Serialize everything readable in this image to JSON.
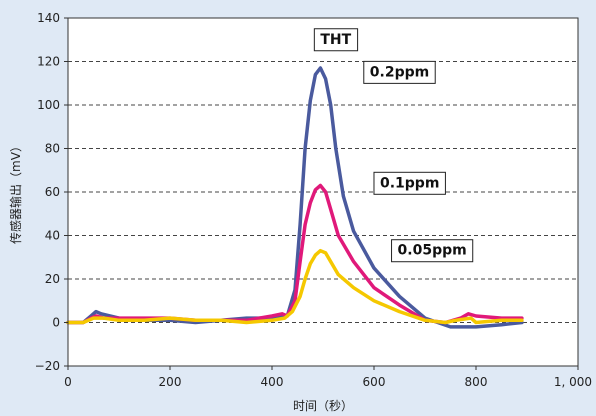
{
  "chart_data": {
    "type": "line",
    "title": "THT",
    "xlabel": "时间（秒）",
    "ylabel": "传感器输出（mV）",
    "xlim": [
      0,
      1000
    ],
    "ylim": [
      -20,
      140
    ],
    "xticks": [
      0,
      200,
      400,
      600,
      800,
      1000
    ],
    "xtick_labels": [
      "0",
      "200",
      "400",
      "600",
      "800",
      "1, 000"
    ],
    "yticks": [
      -20,
      0,
      20,
      40,
      60,
      80,
      100,
      120,
      140
    ],
    "ytick_labels": [
      "−20",
      "0",
      "20",
      "40",
      "60",
      "80",
      "100",
      "120",
      "140"
    ],
    "grid": "horizontal-dashed",
    "series": [
      {
        "name": "0.2ppm",
        "color": "#4a5a9e",
        "x": [
          0,
          30,
          45,
          55,
          65,
          100,
          150,
          200,
          250,
          300,
          350,
          400,
          430,
          445,
          455,
          465,
          475,
          485,
          495,
          505,
          515,
          525,
          540,
          560,
          600,
          650,
          700,
          750,
          800,
          850,
          890
        ],
        "y": [
          0,
          0,
          3,
          5,
          4,
          2,
          1,
          1,
          0,
          1,
          2,
          2,
          3,
          15,
          45,
          80,
          102,
          114,
          117,
          112,
          100,
          80,
          58,
          42,
          25,
          12,
          2,
          -2,
          -2,
          -1,
          0
        ]
      },
      {
        "name": "0.1ppm",
        "color": "#e0197a",
        "x": [
          0,
          30,
          45,
          55,
          70,
          100,
          150,
          200,
          250,
          300,
          350,
          400,
          420,
          430,
          445,
          455,
          465,
          475,
          485,
          495,
          505,
          515,
          530,
          560,
          600,
          650,
          700,
          740,
          770,
          785,
          800,
          850,
          890
        ],
        "y": [
          0,
          0,
          2,
          3,
          2,
          2,
          2,
          2,
          1,
          1,
          1,
          3,
          4,
          3,
          10,
          28,
          45,
          55,
          61,
          63,
          60,
          52,
          40,
          28,
          16,
          8,
          1,
          0,
          2,
          4,
          3,
          2,
          2
        ]
      },
      {
        "name": "0.05ppm",
        "color": "#f5c800",
        "x": [
          0,
          30,
          50,
          70,
          100,
          150,
          200,
          250,
          300,
          350,
          400,
          425,
          440,
          455,
          465,
          475,
          485,
          495,
          505,
          515,
          530,
          560,
          600,
          650,
          700,
          740,
          760,
          790,
          800,
          850,
          890
        ],
        "y": [
          0,
          0,
          2,
          2,
          1,
          1,
          2,
          1,
          1,
          0,
          1,
          2,
          5,
          12,
          20,
          27,
          31,
          33,
          32,
          28,
          22,
          16,
          10,
          5,
          1,
          0,
          1,
          2,
          0,
          1,
          1
        ]
      }
    ],
    "annotations": [
      {
        "text": "THT",
        "x": 525,
        "y": 130
      },
      {
        "text": "0.2ppm",
        "x": 650,
        "y": 115
      },
      {
        "text": "0.1ppm",
        "x": 670,
        "y": 64
      },
      {
        "text": "0.05ppm",
        "x": 714,
        "y": 33
      }
    ]
  }
}
